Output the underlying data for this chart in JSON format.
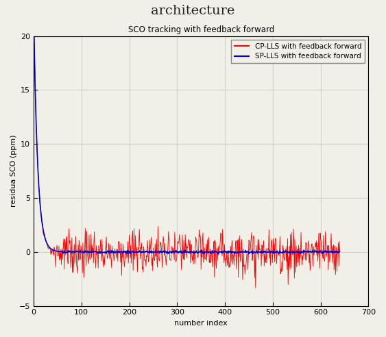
{
  "title": "SCO tracking with feedback forward",
  "super_title": "architecture",
  "xlabel": "number index",
  "ylabel": "residua SCO (ppm)",
  "xlim": [
    0,
    700
  ],
  "ylim": [
    -5,
    20
  ],
  "yticks": [
    -5,
    0,
    5,
    10,
    15,
    20
  ],
  "xticks": [
    0,
    100,
    200,
    300,
    400,
    500,
    600,
    700
  ],
  "cp_lls_label": "CP-LLS with feedback forward",
  "sp_lls_label": "SP-LLS with feedback forward",
  "cp_color": "#ff0000",
  "sp_color": "#0000cc",
  "n_points": 640,
  "initial_value": 20.0,
  "background_color": "#f5f5f0",
  "figsize": [
    5.63,
    4.92
  ],
  "dpi": 100
}
